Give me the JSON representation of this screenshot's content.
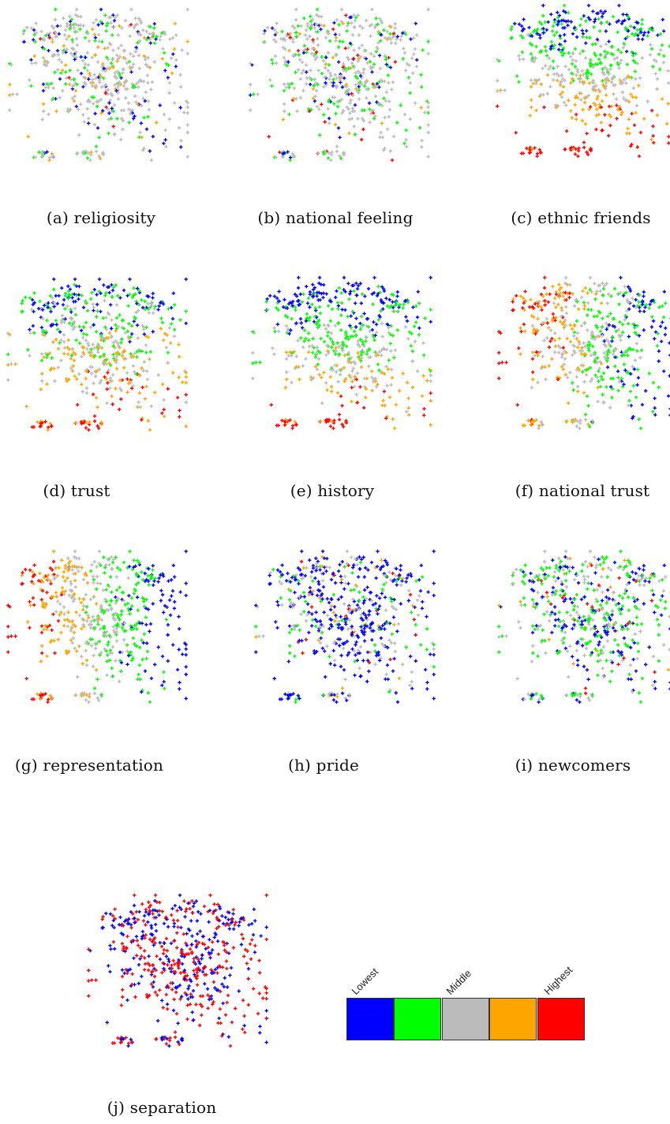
{
  "legend": {
    "labels": {
      "lowest": "Lowest",
      "middle": "Middle",
      "highest": "Highest"
    },
    "colors": [
      "#0000ff",
      "#00ff00",
      "#bbbbbb",
      "#ffa500",
      "#ff0000"
    ]
  },
  "chart_data": [
    {
      "type": "scatter",
      "id": "a",
      "caption": "(a) religiosity"
    },
    {
      "type": "scatter",
      "id": "b",
      "caption": "(b) national feeling"
    },
    {
      "type": "scatter",
      "id": "c",
      "caption": "(c) ethnic friends"
    },
    {
      "type": "scatter",
      "id": "d",
      "caption": "(d) trust"
    },
    {
      "type": "scatter",
      "id": "e",
      "caption": "(e) history"
    },
    {
      "type": "scatter",
      "id": "f",
      "caption": "(f) national trust"
    },
    {
      "type": "scatter",
      "id": "g",
      "caption": "(g) representation"
    },
    {
      "type": "scatter",
      "id": "h",
      "caption": "(h) pride"
    },
    {
      "type": "scatter",
      "id": "i",
      "caption": "(i) newcomers"
    },
    {
      "type": "scatter",
      "id": "j",
      "caption": "(j) separation"
    }
  ]
}
